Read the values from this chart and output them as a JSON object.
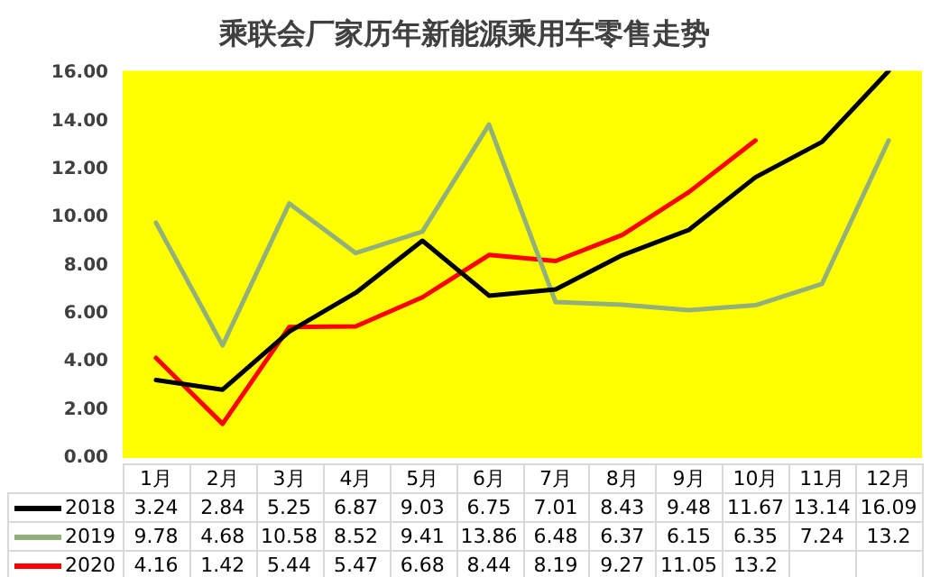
{
  "chart_data": {
    "type": "line",
    "title": "乘联会厂家历年新能源乘用车零售走势",
    "categories": [
      "1月",
      "2月",
      "3月",
      "4月",
      "5月",
      "6月",
      "7月",
      "8月",
      "9月",
      "10月",
      "11月",
      "12月"
    ],
    "series": [
      {
        "name": "2018",
        "color": "#000000",
        "values": [
          3.24,
          2.84,
          5.25,
          6.87,
          9.03,
          6.75,
          7.01,
          8.43,
          9.48,
          11.67,
          13.14,
          16.09
        ]
      },
      {
        "name": "2019",
        "color": "#92b07a",
        "values": [
          9.78,
          4.68,
          10.58,
          8.52,
          9.41,
          13.86,
          6.48,
          6.37,
          6.15,
          6.35,
          7.24,
          13.2
        ]
      },
      {
        "name": "2020",
        "color": "#ff0000",
        "values": [
          4.16,
          1.42,
          5.44,
          5.47,
          6.68,
          8.44,
          8.19,
          9.27,
          11.05,
          13.2,
          null,
          null
        ]
      }
    ],
    "ylim": [
      0,
      16.1
    ],
    "yticks": [
      {
        "value": 0,
        "label": "0.00"
      },
      {
        "value": 2,
        "label": "2.00"
      },
      {
        "value": 4,
        "label": "4.00"
      },
      {
        "value": 6,
        "label": "6.00"
      },
      {
        "value": 8,
        "label": "8.00"
      },
      {
        "value": 10,
        "label": "10.00"
      },
      {
        "value": 12,
        "label": "12.00"
      },
      {
        "value": 14,
        "label": "14.00"
      },
      {
        "value": 16,
        "label": "16.00"
      }
    ],
    "grid": false,
    "legend": "bottom",
    "marker": "none",
    "line_style": "solid",
    "data_labels": true
  }
}
